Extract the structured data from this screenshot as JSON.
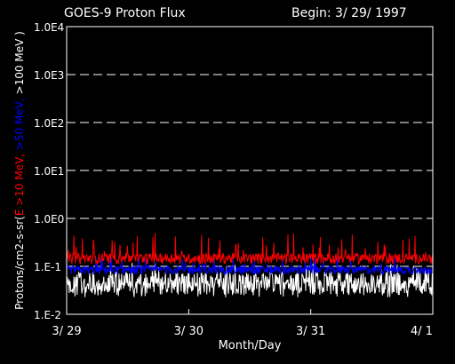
{
  "chart_data": {
    "type": "line",
    "title": "GOES-9 Proton Flux",
    "begin_label": "Begin: 3/ 29/ 1997",
    "xlabel": "Month/Day",
    "ylabel_parts": [
      {
        "text": "Protons/cm2-s-sr(",
        "color": "#ffffff"
      },
      {
        "text": "E >10 MeV,",
        "color": "#ff0000"
      },
      {
        "text": " >50 MeV,",
        "color": "#0000ff"
      },
      {
        "text": " >100 MeV )",
        "color": "#ffffff"
      }
    ],
    "y_scale": "log",
    "ylim": [
      0.01,
      10000
    ],
    "y_ticks": [
      {
        "value": 10000,
        "label": "1.0E4"
      },
      {
        "value": 1000,
        "label": "1.0E3"
      },
      {
        "value": 100,
        "label": "1.0E2"
      },
      {
        "value": 10,
        "label": "1.0E1"
      },
      {
        "value": 1,
        "label": "1.0E0"
      },
      {
        "value": 0.1,
        "label": "1.E-1"
      },
      {
        "value": 0.01,
        "label": "1.E-2"
      }
    ],
    "x_ticks": [
      {
        "value": 0,
        "label": "3/ 29"
      },
      {
        "value": 1,
        "label": "3/ 30"
      },
      {
        "value": 2,
        "label": "3/ 31"
      },
      {
        "value": 3,
        "label": "4/ 1"
      }
    ],
    "xlim": [
      0,
      3
    ],
    "grid": "dashed horizontal at decades",
    "series": [
      {
        "color": "#ff0000",
        "base": 0.15,
        "spread": 0.25,
        "spike_max": 0.5
      },
      {
        "color": "#0000ff",
        "base": 0.085,
        "spread": 0.2,
        "spike_max": 0.16
      },
      {
        "color": "#ffffff",
        "base": 0.05,
        "spread": 0.55,
        "spike_max": 0.12
      }
    ]
  }
}
